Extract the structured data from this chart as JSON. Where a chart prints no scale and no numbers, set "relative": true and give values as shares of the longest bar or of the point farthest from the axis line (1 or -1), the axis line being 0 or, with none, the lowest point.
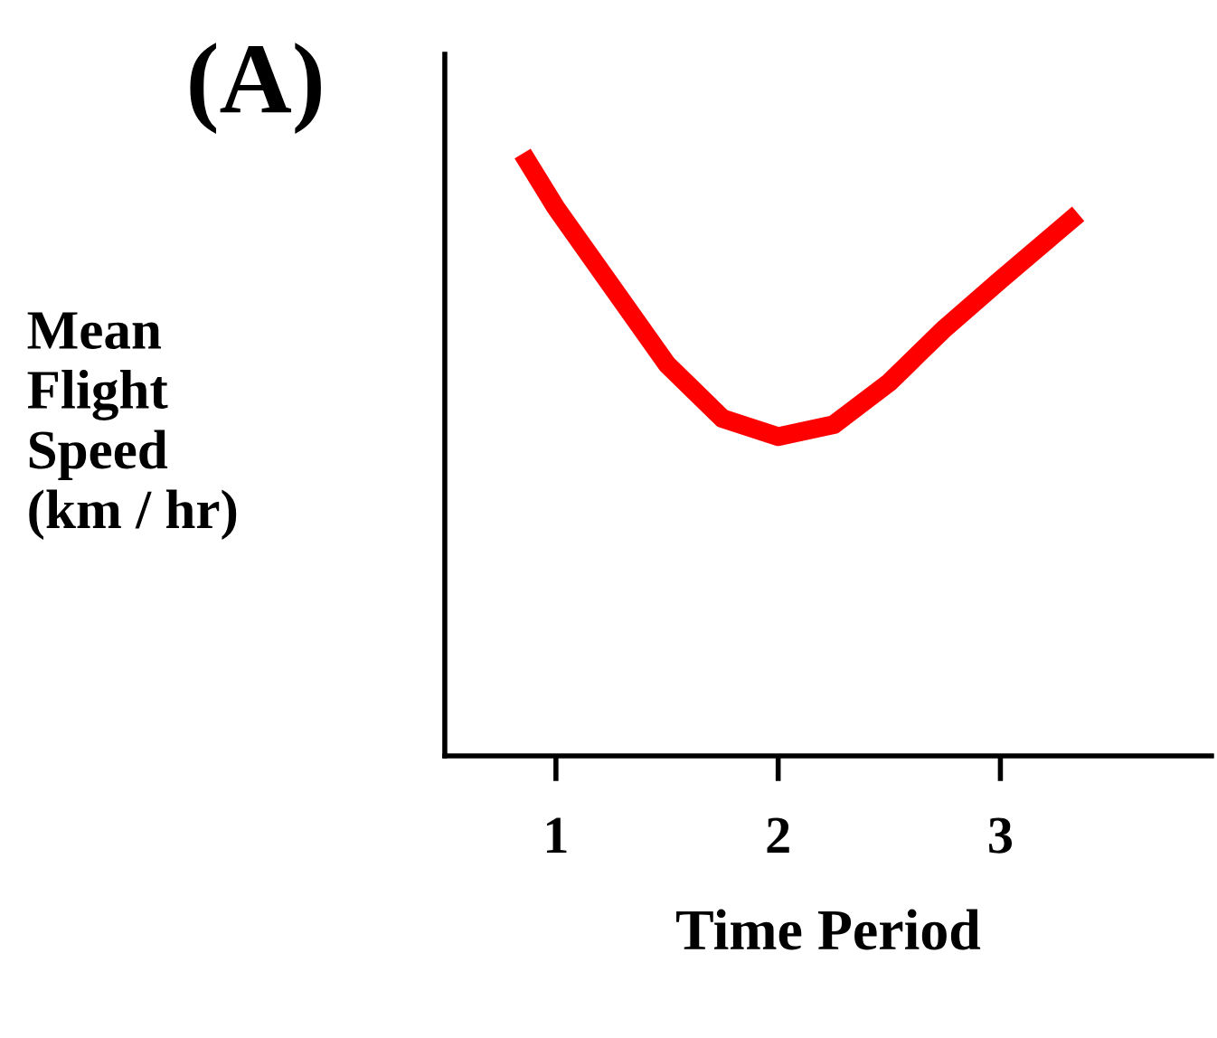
{
  "chart_data": {
    "type": "line",
    "title": "(A)",
    "xlabel": "Time Period",
    "ylabel": "Mean\nFlight\nSpeed\n(km / hr)",
    "relative": true,
    "xlim": [
      0.5,
      3.95
    ],
    "xticks": [
      1,
      2,
      3
    ],
    "grid": false,
    "legend": false,
    "marker": "none",
    "line_style": "solid",
    "series": [
      {
        "color": "#ff0000",
        "x": [
          0.85,
          1,
          1.25,
          1.5,
          1.75,
          2,
          2.25,
          2.5,
          2.75,
          3,
          3.35
        ],
        "values": [
          1.0,
          0.91,
          0.78,
          0.65,
          0.56,
          0.53,
          0.55,
          0.62,
          0.71,
          0.79,
          0.9
        ]
      }
    ]
  }
}
